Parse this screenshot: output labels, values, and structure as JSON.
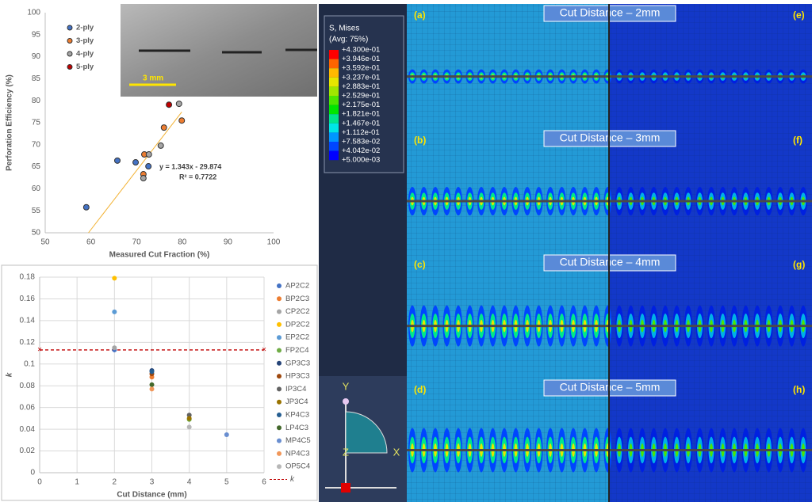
{
  "chart_data": [
    {
      "type": "scatter",
      "x_label": "Measured Cut Fraction (%)",
      "y_label": "Perforation Efficiency (%)",
      "xlim": [
        50,
        100
      ],
      "xticks": [
        50,
        60,
        70,
        80,
        90,
        100
      ],
      "ylim": [
        50,
        100
      ],
      "yticks": [
        50,
        55,
        60,
        65,
        70,
        75,
        80,
        85,
        90,
        95,
        100
      ],
      "grid": false,
      "legend": "upper-left",
      "series": [
        {
          "name": "2-ply",
          "color": "#4472c4",
          "x": [
            59.0,
            65.8,
            69.8,
            72.6
          ],
          "values": [
            55.8,
            66.4,
            66.0,
            65.1
          ]
        },
        {
          "name": "3-ply",
          "color": "#ed7d31",
          "x": [
            71.7,
            71.5,
            76.0,
            79.9
          ],
          "values": [
            67.8,
            63.3,
            73.9,
            75.5
          ]
        },
        {
          "name": "4-ply",
          "color": "#a5a5a5",
          "x": [
            72.7,
            71.5,
            75.3,
            79.3
          ],
          "values": [
            67.8,
            62.4,
            69.8,
            79.3
          ]
        },
        {
          "name": "5-ply",
          "color": "#c00000",
          "x": [
            77.1
          ],
          "values": [
            79.1
          ]
        }
      ],
      "trendline": {
        "equation": "y = 1.343x - 29.874",
        "r_squared": "R² = 0.7722",
        "color": "#f2b233"
      },
      "inset": {
        "scale_bar": "3 mm"
      }
    },
    {
      "type": "scatter",
      "x_label": "Cut Distance (mm)",
      "y_label": "k",
      "xlim": [
        0,
        6
      ],
      "xticks": [
        0,
        1,
        2,
        3,
        4,
        5,
        6
      ],
      "ylim": [
        0,
        0.18
      ],
      "yticks": [
        0,
        0.02,
        0.04,
        0.06,
        0.08,
        0.1,
        0.12,
        0.14,
        0.16,
        0.18
      ],
      "grid": true,
      "legend": "right",
      "series": [
        {
          "name": "AP2C2",
          "color": "#4472c4",
          "x": [
            2
          ],
          "values": [
            0.113
          ]
        },
        {
          "name": "BP2C3",
          "color": "#ed7d31",
          "x": [
            3
          ],
          "values": [
            0.088
          ]
        },
        {
          "name": "CP2C2",
          "color": "#a5a5a5",
          "x": [
            2
          ],
          "values": [
            0.115
          ]
        },
        {
          "name": "DP2C2",
          "color": "#ffc000",
          "x": [
            2
          ],
          "values": [
            0.179
          ]
        },
        {
          "name": "EP2C2",
          "color": "#5b9bd5",
          "x": [
            2
          ],
          "values": [
            0.148
          ]
        },
        {
          "name": "FP2C4",
          "color": "#70ad47",
          "x": [
            4
          ],
          "values": [
            0.049
          ]
        },
        {
          "name": "GP3C3",
          "color": "#264478",
          "x": [
            3
          ],
          "values": [
            0.094
          ]
        },
        {
          "name": "HP3C3",
          "color": "#9e480e",
          "x": [
            3
          ],
          "values": [
            0.091
          ]
        },
        {
          "name": "IP3C4",
          "color": "#636363",
          "x": [
            4
          ],
          "values": [
            0.053
          ]
        },
        {
          "name": "JP3C4",
          "color": "#997300",
          "x": [
            4
          ],
          "values": [
            0.05
          ]
        },
        {
          "name": "KP4C3",
          "color": "#255e91",
          "x": [
            3
          ],
          "values": [
            0.093
          ]
        },
        {
          "name": "LP4C3",
          "color": "#43682b",
          "x": [
            3
          ],
          "values": [
            0.081
          ]
        },
        {
          "name": "MP4C5",
          "color": "#698ed0",
          "x": [
            5
          ],
          "values": [
            0.035
          ]
        },
        {
          "name": "NP4C3",
          "color": "#f1975a",
          "x": [
            3
          ],
          "values": [
            0.077
          ]
        },
        {
          "name": "OP5C4",
          "color": "#b7b7b7",
          "x": [
            4
          ],
          "values": [
            0.042
          ]
        }
      ],
      "reference_lines": [
        {
          "name": "k",
          "value": 0.113,
          "color": "#c00000"
        }
      ]
    }
  ],
  "contour_legend": {
    "title": "S, Mises",
    "subtitle": "(Avg: 75%)",
    "levels": [
      "+4.300e-01",
      "+3.946e-01",
      "+3.592e-01",
      "+3.237e-01",
      "+2.883e-01",
      "+2.529e-01",
      "+2.175e-01",
      "+1.821e-01",
      "+1.467e-01",
      "+1.112e-01",
      "+7.583e-02",
      "+4.042e-02",
      "+5.000e-03"
    ],
    "colors": [
      "#ff0000",
      "#ff6400",
      "#ffb900",
      "#e6e600",
      "#a0e600",
      "#4de600",
      "#00e600",
      "#00e68c",
      "#00e6e6",
      "#0096ff",
      "#0046ff",
      "#0000ff"
    ]
  },
  "triad": {
    "y": "Y",
    "z": "Z",
    "x": "X"
  },
  "panels": [
    {
      "title": "Cut Distance – 2mm",
      "left": "(a)",
      "right": "(e)"
    },
    {
      "title": "Cut Distance – 3mm",
      "left": "(b)",
      "right": "(f)"
    },
    {
      "title": "Cut Distance – 4mm",
      "left": "(c)",
      "right": "(g)"
    },
    {
      "title": "Cut Distance – 5mm",
      "left": "(d)",
      "right": "(h)"
    }
  ]
}
